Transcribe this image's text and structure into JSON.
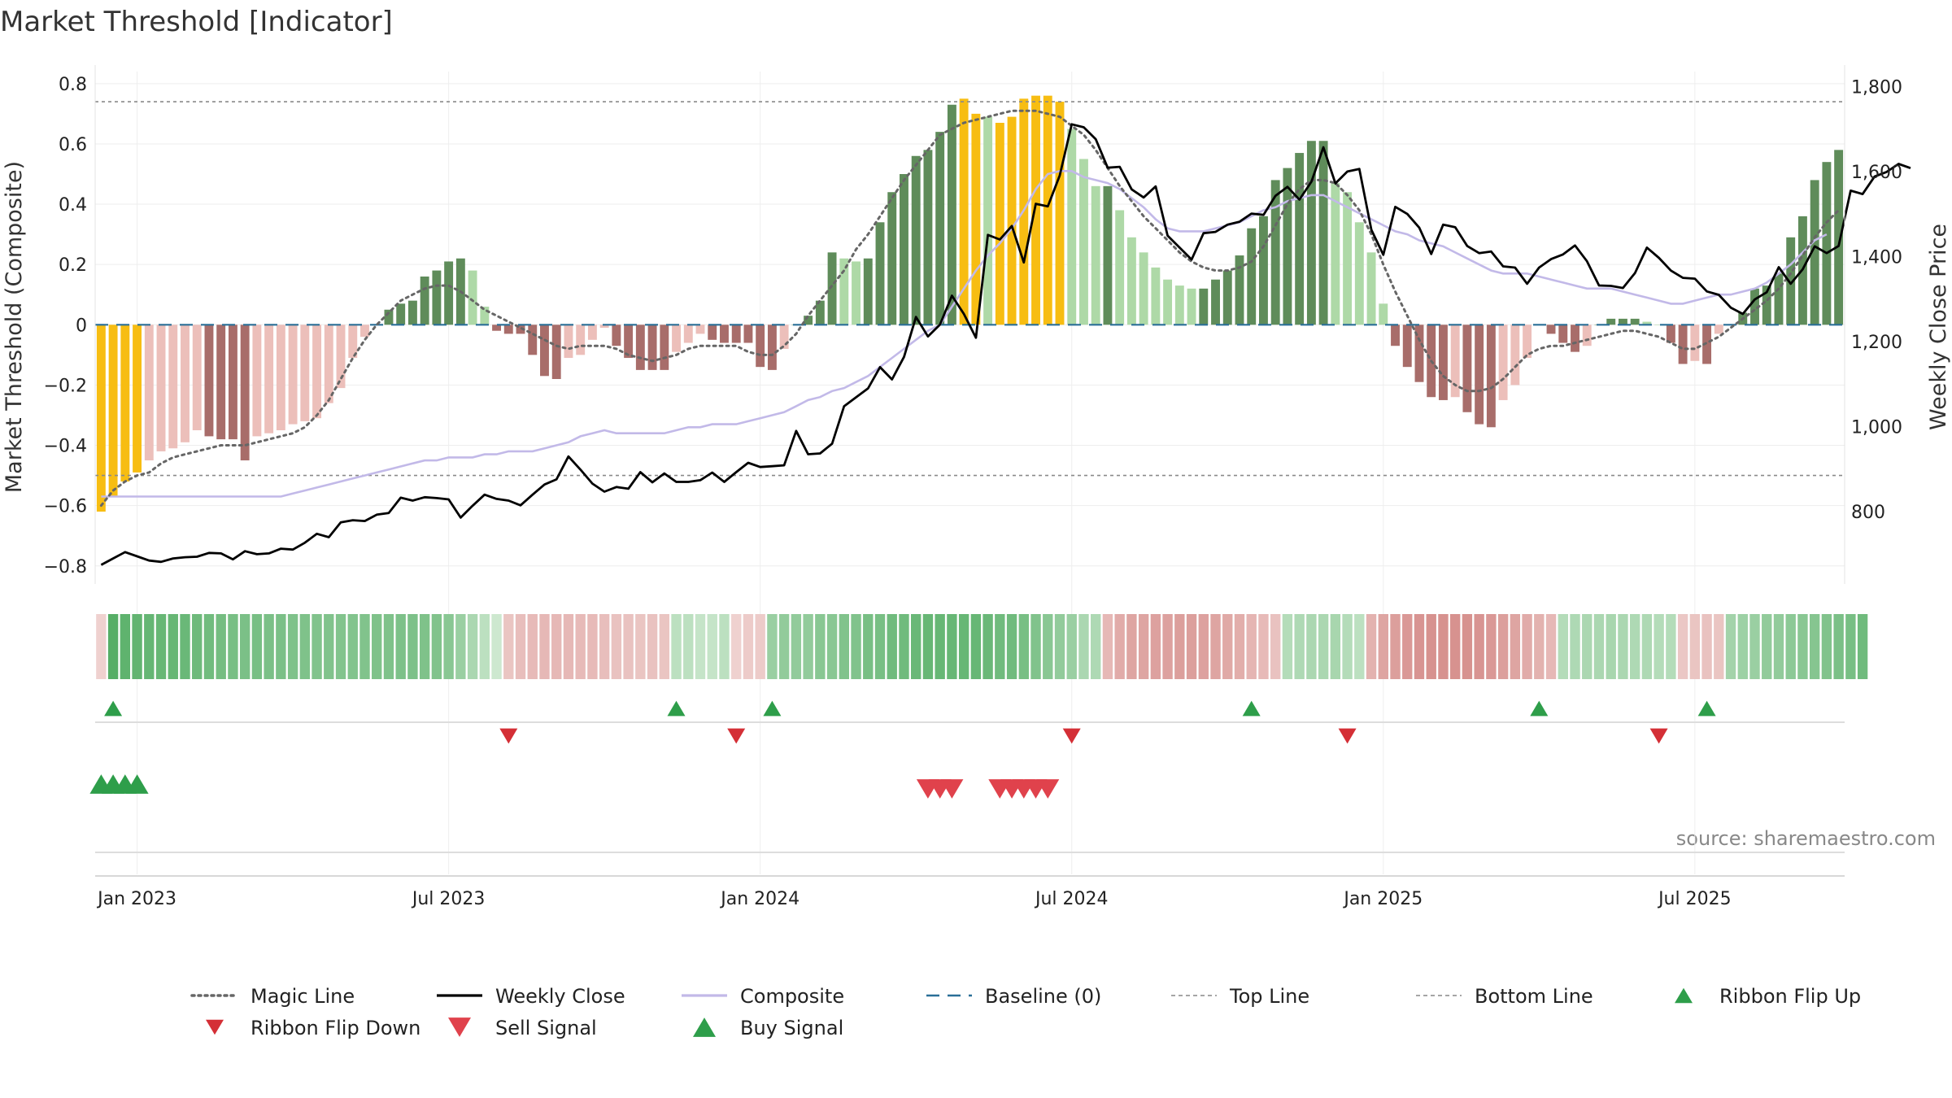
{
  "chart_data": {
    "type": "bar",
    "title": "Market Threshold [Indicator]",
    "ylabel": "Market Threshold (Composite)",
    "y2label": "Weekly Close Price",
    "source": "source: sharemaestro.com",
    "ylim": [
      -0.86,
      0.84
    ],
    "y2lim": [
      630,
      1835
    ],
    "y_ticks": [
      {
        "v": 0.8,
        "label": "0.8"
      },
      {
        "v": 0.6,
        "label": "0.6"
      },
      {
        "v": 0.4,
        "label": "0.4"
      },
      {
        "v": 0.2,
        "label": "0.2"
      },
      {
        "v": 0,
        "label": "0"
      },
      {
        "v": -0.2,
        "label": "−0.2"
      },
      {
        "v": -0.4,
        "label": "−0.4"
      },
      {
        "v": -0.6,
        "label": "−0.6"
      },
      {
        "v": -0.8,
        "label": "−0.8"
      }
    ],
    "y2_ticks": [
      {
        "v": 1800,
        "label": "1,800"
      },
      {
        "v": 1600,
        "label": "1,600"
      },
      {
        "v": 1400,
        "label": "1,400"
      },
      {
        "v": 1200,
        "label": "1,200"
      },
      {
        "v": 1000,
        "label": "1,000"
      },
      {
        "v": 800,
        "label": "800"
      }
    ],
    "x_ticks": [
      {
        "i": 3,
        "label": "Jan 2023"
      },
      {
        "i": 29,
        "label": "Jul 2023"
      },
      {
        "i": 55,
        "label": "Jan 2024"
      },
      {
        "i": 81,
        "label": "Jul 2024"
      },
      {
        "i": 107,
        "label": "Jan 2025"
      },
      {
        "i": 133,
        "label": "Jul 2025"
      }
    ],
    "top_line": 0.74,
    "bottom_line": -0.5,
    "series": [
      {
        "name": "Composite (bars)",
        "values": [
          -0.62,
          -0.57,
          -0.52,
          -0.49,
          -0.45,
          -0.42,
          -0.41,
          -0.39,
          -0.35,
          -0.37,
          -0.38,
          -0.38,
          -0.45,
          -0.37,
          -0.36,
          -0.35,
          -0.33,
          -0.32,
          -0.31,
          -0.26,
          -0.21,
          -0.11,
          -0.04,
          0,
          0.05,
          0.07,
          0.08,
          0.16,
          0.18,
          0.21,
          0.22,
          0.18,
          0.06,
          -0.02,
          -0.03,
          -0.03,
          -0.1,
          -0.17,
          -0.18,
          -0.11,
          -0.1,
          -0.05,
          -0.01,
          -0.07,
          -0.11,
          -0.15,
          -0.15,
          -0.15,
          -0.09,
          -0.06,
          -0.03,
          -0.05,
          -0.06,
          -0.06,
          -0.06,
          -0.14,
          -0.15,
          -0.08,
          0,
          0.03,
          0.08,
          0.24,
          0.22,
          0.21,
          0.22,
          0.34,
          0.44,
          0.5,
          0.56,
          0.58,
          0.64,
          0.73,
          0.75,
          0.7,
          0.69,
          0.67,
          0.69,
          0.75,
          0.76,
          0.76,
          0.74,
          0.65,
          0.55,
          0.46,
          0.46,
          0.38,
          0.29,
          0.24,
          0.19,
          0.15,
          0.13,
          0.12,
          0.12,
          0.15,
          0.18,
          0.23,
          0.32,
          0.36,
          0.48,
          0.52,
          0.57,
          0.61,
          0.61,
          0.47,
          0.44,
          0.34,
          0.24,
          0.07,
          -0.07,
          -0.14,
          -0.19,
          -0.24,
          -0.25,
          -0.24,
          -0.29,
          -0.33,
          -0.34,
          -0.25,
          -0.2,
          -0.11,
          0,
          -0.03,
          -0.06,
          -0.09,
          -0.07,
          0,
          0.02,
          0.02,
          0.02,
          0.01,
          0,
          -0.06,
          -0.13,
          -0.12,
          -0.13,
          -0.03,
          0,
          0.04,
          0.12,
          0.13,
          0.17,
          0.29,
          0.36,
          0.48,
          0.54,
          0.58
        ]
      },
      {
        "name": "Weekly Close",
        "values": [
          675,
          690,
          705,
          695,
          685,
          682,
          690,
          693,
          694,
          703,
          702,
          688,
          707,
          700,
          702,
          713,
          711,
          727,
          748,
          740,
          775,
          780,
          778,
          793,
          797,
          833,
          826,
          834,
          832,
          829,
          786,
          814,
          840,
          830,
          826,
          815,
          840,
          864,
          876,
          930,
          899,
          866,
          847,
          858,
          854,
          893,
          869,
          890,
          870,
          870,
          874,
          892,
          870,
          893,
          915,
          905,
          907,
          909,
          990,
          935,
          937,
          960,
          1048,
          1069,
          1090,
          1140,
          1111,
          1164,
          1258,
          1212,
          1240,
          1308,
          1265,
          1209,
          1451,
          1440,
          1472,
          1386,
          1524,
          1518,
          1591,
          1711,
          1704,
          1676,
          1609,
          1611,
          1558,
          1539,
          1565,
          1449,
          1421,
          1393,
          1455,
          1458,
          1475,
          1482,
          1501,
          1498,
          1543,
          1564,
          1534,
          1576,
          1657,
          1572,
          1600,
          1606,
          1463,
          1404,
          1517,
          1500,
          1468,
          1406,
          1475,
          1469,
          1425,
          1408,
          1412,
          1377,
          1374,
          1336,
          1374,
          1394,
          1405,
          1426,
          1389,
          1332,
          1331,
          1326,
          1361,
          1421,
          1397,
          1367,
          1350,
          1348,
          1318,
          1310,
          1280,
          1265,
          1299,
          1316,
          1375,
          1336,
          1370,
          1424,
          1408,
          1425,
          1555,
          1547,
          1588,
          1599,
          1618,
          1608
        ]
      },
      {
        "name": "Composite",
        "values": [
          -0.57,
          -0.57,
          -0.57,
          -0.57,
          -0.57,
          -0.57,
          -0.57,
          -0.57,
          -0.57,
          -0.57,
          -0.57,
          -0.57,
          -0.57,
          -0.57,
          -0.57,
          -0.57,
          -0.56,
          -0.55,
          -0.54,
          -0.53,
          -0.52,
          -0.51,
          -0.5,
          -0.49,
          -0.48,
          -0.47,
          -0.46,
          -0.45,
          -0.45,
          -0.44,
          -0.44,
          -0.44,
          -0.43,
          -0.43,
          -0.42,
          -0.42,
          -0.42,
          -0.41,
          -0.4,
          -0.39,
          -0.37,
          -0.36,
          -0.35,
          -0.36,
          -0.36,
          -0.36,
          -0.36,
          -0.36,
          -0.35,
          -0.34,
          -0.34,
          -0.33,
          -0.33,
          -0.33,
          -0.32,
          -0.31,
          -0.3,
          -0.29,
          -0.27,
          -0.25,
          -0.24,
          -0.22,
          -0.21,
          -0.19,
          -0.17,
          -0.14,
          -0.11,
          -0.08,
          -0.05,
          -0.02,
          0,
          0.06,
          0.12,
          0.18,
          0.23,
          0.27,
          0.32,
          0.38,
          0.45,
          0.5,
          0.51,
          0.51,
          0.49,
          0.48,
          0.47,
          0.45,
          0.42,
          0.39,
          0.35,
          0.32,
          0.31,
          0.31,
          0.31,
          0.32,
          0.33,
          0.34,
          0.36,
          0.38,
          0.39,
          0.41,
          0.42,
          0.43,
          0.43,
          0.41,
          0.39,
          0.37,
          0.35,
          0.33,
          0.31,
          0.3,
          0.28,
          0.27,
          0.26,
          0.24,
          0.22,
          0.2,
          0.18,
          0.17,
          0.17,
          0.17,
          0.16,
          0.15,
          0.14,
          0.13,
          0.12,
          0.12,
          0.12,
          0.11,
          0.1,
          0.09,
          0.08,
          0.07,
          0.07,
          0.08,
          0.09,
          0.1,
          0.1,
          0.11,
          0.12,
          0.14,
          0.17,
          0.2,
          0.24,
          0.28,
          0.3
        ]
      },
      {
        "name": "Magic Line",
        "values": [
          -0.6,
          -0.55,
          -0.52,
          -0.5,
          -0.49,
          -0.46,
          -0.44,
          -0.43,
          -0.42,
          -0.41,
          -0.4,
          -0.4,
          -0.4,
          -0.39,
          -0.38,
          -0.37,
          -0.36,
          -0.34,
          -0.3,
          -0.25,
          -0.18,
          -0.11,
          -0.05,
          0,
          0.04,
          0.08,
          0.1,
          0.12,
          0.13,
          0.13,
          0.11,
          0.08,
          0.05,
          0.03,
          0.01,
          -0.01,
          -0.03,
          -0.05,
          -0.07,
          -0.08,
          -0.07,
          -0.07,
          -0.07,
          -0.08,
          -0.1,
          -0.11,
          -0.12,
          -0.11,
          -0.1,
          -0.08,
          -0.07,
          -0.07,
          -0.07,
          -0.07,
          -0.09,
          -0.1,
          -0.1,
          -0.07,
          -0.03,
          0.03,
          0.08,
          0.13,
          0.18,
          0.25,
          0.3,
          0.36,
          0.42,
          0.48,
          0.53,
          0.58,
          0.63,
          0.65,
          0.67,
          0.68,
          0.69,
          0.7,
          0.71,
          0.71,
          0.71,
          0.7,
          0.69,
          0.66,
          0.63,
          0.58,
          0.52,
          0.46,
          0.41,
          0.36,
          0.32,
          0.28,
          0.24,
          0.21,
          0.19,
          0.18,
          0.18,
          0.19,
          0.21,
          0.26,
          0.33,
          0.4,
          0.45,
          0.48,
          0.48,
          0.47,
          0.43,
          0.38,
          0.3,
          0.2,
          0.11,
          0.03,
          -0.05,
          -0.12,
          -0.17,
          -0.2,
          -0.22,
          -0.22,
          -0.21,
          -0.18,
          -0.14,
          -0.1,
          -0.08,
          -0.07,
          -0.07,
          -0.06,
          -0.05,
          -0.04,
          -0.03,
          -0.02,
          -0.02,
          -0.03,
          -0.04,
          -0.06,
          -0.08,
          -0.08,
          -0.06,
          -0.04,
          -0.01,
          0.02,
          0.05,
          0.08,
          0.12,
          0.17,
          0.23,
          0.29,
          0.34,
          0.38
        ]
      },
      {
        "name": "Ribbon",
        "values": [
          -0.1,
          0.8,
          0.75,
          0.73,
          0.71,
          0.7,
          0.7,
          0.68,
          0.66,
          0.64,
          0.62,
          0.6,
          0.58,
          0.6,
          0.58,
          0.58,
          0.56,
          0.56,
          0.55,
          0.55,
          0.54,
          0.54,
          0.55,
          0.56,
          0.56,
          0.57,
          0.57,
          0.56,
          0.55,
          0.5,
          0.4,
          0.3,
          0.2,
          0.1,
          -0.2,
          -0.25,
          -0.28,
          -0.3,
          -0.3,
          -0.3,
          -0.28,
          -0.28,
          -0.25,
          -0.22,
          -0.22,
          -0.2,
          -0.22,
          -0.2,
          0.2,
          0.2,
          0.15,
          0.15,
          0.2,
          -0.1,
          -0.15,
          -0.15,
          0.4,
          0.45,
          0.45,
          0.45,
          0.5,
          0.5,
          0.55,
          0.55,
          0.6,
          0.6,
          0.65,
          0.65,
          0.68,
          0.7,
          0.7,
          0.7,
          0.7,
          0.7,
          0.68,
          0.65,
          0.65,
          0.6,
          0.55,
          0.5,
          0.45,
          0.4,
          0.3,
          0.28,
          -0.3,
          -0.4,
          -0.45,
          -0.45,
          -0.48,
          -0.48,
          -0.5,
          -0.5,
          -0.48,
          -0.45,
          -0.42,
          -0.38,
          -0.32,
          -0.28,
          -0.22,
          0.25,
          0.28,
          0.3,
          0.3,
          0.32,
          0.25,
          0.2,
          -0.35,
          -0.45,
          -0.5,
          -0.55,
          -0.58,
          -0.6,
          -0.6,
          -0.6,
          -0.6,
          -0.58,
          -0.55,
          -0.5,
          -0.45,
          -0.4,
          -0.35,
          -0.3,
          0.25,
          0.28,
          0.3,
          0.3,
          0.32,
          0.3,
          0.28,
          0.28,
          0.25,
          0.25,
          -0.18,
          -0.2,
          -0.22,
          -0.2,
          0.35,
          0.38,
          0.4,
          0.45,
          0.45,
          0.48,
          0.5,
          0.52,
          0.55,
          0.58,
          0.6,
          0.65
        ]
      }
    ],
    "highlight_bars": [
      0,
      1,
      2,
      3,
      72,
      73,
      75,
      76,
      77,
      78,
      79,
      80
    ],
    "markers": {
      "ribbon_flip_up": [
        1,
        48,
        56,
        96,
        120,
        134
      ],
      "ribbon_flip_down": [
        34,
        53,
        81,
        104,
        130
      ],
      "sell_signal": [
        69,
        70,
        71,
        75,
        76,
        77,
        78,
        79
      ],
      "buy_signal": [
        0,
        1,
        2,
        3
      ]
    },
    "legend": [
      {
        "label": "Magic Line",
        "kind": "dotted",
        "color": "#666666"
      },
      {
        "label": "Weekly Close",
        "kind": "solid",
        "color": "#000000"
      },
      {
        "label": "Composite",
        "kind": "solid",
        "color": "#c2b9e8"
      },
      {
        "label": "Baseline (0)",
        "kind": "dashed",
        "color": "#2a6f97"
      },
      {
        "label": "Top Line",
        "kind": "dashed-thin",
        "color": "#999999"
      },
      {
        "label": "Bottom Line",
        "kind": "dashed-thin",
        "color": "#999999"
      },
      {
        "label": "Ribbon Flip Up",
        "kind": "tri-up-small",
        "color": "#2e9e4a"
      },
      {
        "label": "Ribbon Flip Down",
        "kind": "tri-down-small",
        "color": "#d42f36"
      },
      {
        "label": "Sell Signal",
        "kind": "tri-down",
        "color": "#e0424c"
      },
      {
        "label": "Buy Signal",
        "kind": "tri-up",
        "color": "#2e9e4a"
      }
    ]
  }
}
